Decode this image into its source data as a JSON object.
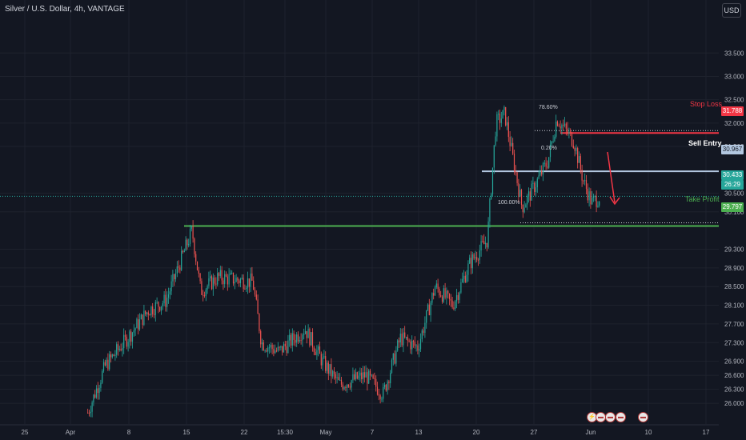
{
  "header": {
    "title": "Silver / U.S. Dollar, 4h, VANTAGE",
    "currency_button": "USD"
  },
  "colors": {
    "background": "#131722",
    "bull": "#26a69a",
    "bear": "#ef5350",
    "stop": "#f23645",
    "entry": "#b2c7e0",
    "target": "#4caf50"
  },
  "price_axis": {
    "ticks": [
      "33.500",
      "33.000",
      "32.500",
      "32.000",
      "31.500",
      "30.500",
      "30.100",
      "29.300",
      "28.900",
      "28.500",
      "28.100",
      "27.700",
      "27.300",
      "26.900",
      "26.600",
      "26.300",
      "26.000"
    ]
  },
  "time_axis": {
    "ticks": [
      "25",
      "Apr",
      "8",
      "15",
      "22",
      "15:30",
      "May",
      "7",
      "13",
      "20",
      "27",
      "Jun",
      "10",
      "17"
    ]
  },
  "levels": {
    "stop_loss": {
      "label": "Stop Loss",
      "price": "31.788",
      "fib": "78.60%"
    },
    "sell_entry": {
      "label": "Sell Entry",
      "price": "30.967",
      "fib": "0.20%"
    },
    "take_profit": {
      "label": "Take Profit",
      "price": "29.797",
      "fib": "100.00%"
    },
    "current": {
      "price": "30.433",
      "countdown": "26:29"
    }
  },
  "events": [
    "event-marker",
    "flag-marker",
    "flag-marker",
    "flag-marker",
    "flag-marker"
  ],
  "chart_data": {
    "type": "candlestick",
    "title": "Silver / U.S. Dollar, 4h, VANTAGE",
    "ylim": [
      25.9,
      33.95
    ],
    "anchors": [
      [
        "Apr 3",
        25.8
      ],
      [
        "Apr 5",
        26.8
      ],
      [
        "Apr 8",
        27.5
      ],
      [
        "Apr 10",
        28.0
      ],
      [
        "Apr 12",
        28.2
      ],
      [
        "Apr 15",
        29.7
      ],
      [
        "Apr 16",
        28.4
      ],
      [
        "Apr 18",
        28.7
      ],
      [
        "Apr 22",
        28.6
      ],
      [
        "Apr 23",
        27.3
      ],
      [
        "Apr 25",
        27.1
      ],
      [
        "Apr 28",
        27.6
      ],
      [
        "Apr 30",
        26.9
      ],
      [
        "May 2",
        26.4
      ],
      [
        "May 5",
        26.6
      ],
      [
        "May 7",
        26.2
      ],
      [
        "May 9",
        27.4
      ],
      [
        "May 11",
        27.2
      ],
      [
        "May 13",
        28.5
      ],
      [
        "May 15",
        28.1
      ],
      [
        "May 17",
        29.0
      ],
      [
        "May 19",
        29.5
      ],
      [
        "May 20",
        32.0
      ],
      [
        "May 21",
        32.2
      ],
      [
        "May 23",
        30.2
      ],
      [
        "May 24",
        30.5
      ],
      [
        "May 26",
        31.2
      ],
      [
        "May 27",
        32.1
      ],
      [
        "May 29",
        31.6
      ],
      [
        "May 30",
        30.8
      ],
      [
        "May 31",
        30.3
      ],
      [
        "Jun 1",
        30.43
      ]
    ]
  }
}
